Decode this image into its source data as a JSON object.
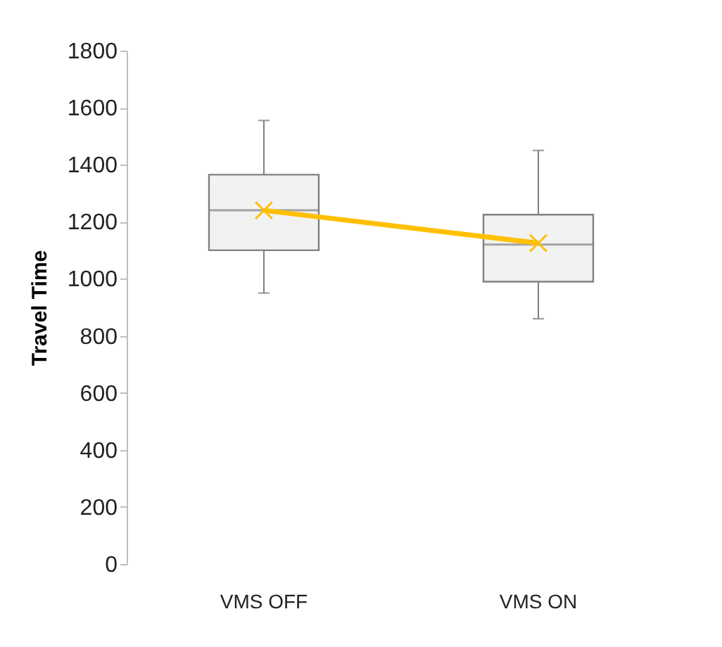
{
  "chart_data": {
    "type": "box",
    "ylabel": "Travel Time",
    "categories": [
      "VMS OFF",
      "VMS ON"
    ],
    "boxes": [
      {
        "low": 950,
        "q1": 1100,
        "median": 1240,
        "q3": 1365,
        "high": 1555
      },
      {
        "low": 860,
        "q1": 990,
        "median": 1120,
        "q3": 1225,
        "high": 1450
      }
    ],
    "color": "#f2f2f2",
    "series": [
      {
        "type": "line",
        "values": [
          1240,
          1125
        ],
        "color": "#ffc000",
        "marker": "cross"
      }
    ],
    "ylim": [
      0,
      1800
    ],
    "yticks": [
      0,
      200,
      400,
      600,
      800,
      1000,
      1200,
      1400,
      1600,
      1800
    ],
    "grid": false
  }
}
